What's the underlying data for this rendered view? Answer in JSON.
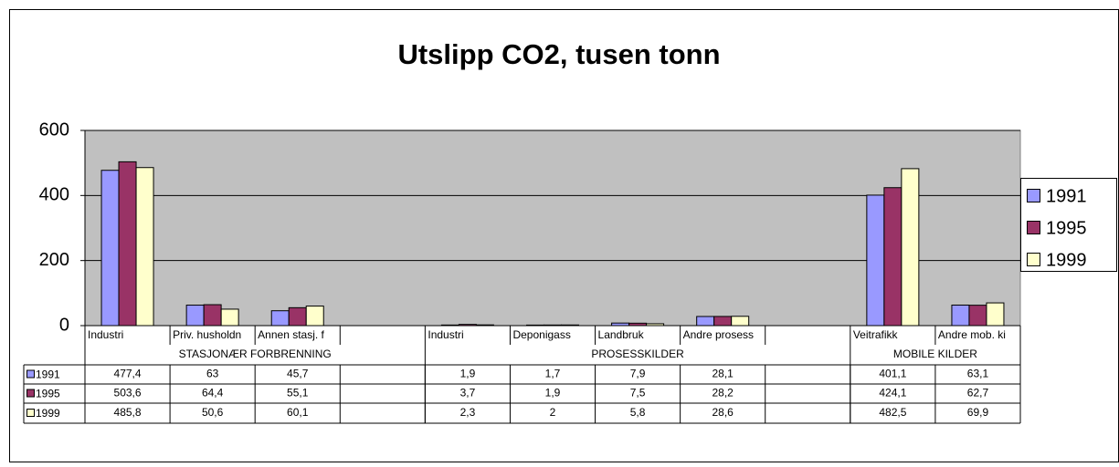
{
  "chart_data": {
    "type": "bar",
    "title": "Utslipp CO2, tusen tonn",
    "categories": [
      "Industri",
      "Priv. husholdn",
      "Annen stasj. f",
      null,
      "Industri",
      "Deponigass",
      "Landbruk",
      "Andre prosess",
      null,
      "Veitrafikk",
      "Andre mob. ki"
    ],
    "groups": [
      {
        "label": "STASJONÆR FORBRENNING",
        "span": [
          0,
          3
        ]
      },
      {
        "label": "PROSESSKILDER",
        "span": [
          4,
          8
        ]
      },
      {
        "label": "MOBILE KILDER",
        "span": [
          9,
          10
        ]
      }
    ],
    "series": [
      {
        "name": "1991",
        "color": "#9999ff",
        "values": [
          477.4,
          63,
          45.7,
          null,
          1.9,
          1.7,
          7.9,
          28.1,
          null,
          401.1,
          63.1
        ],
        "value_labels": [
          "477,4",
          "63",
          "45,7",
          null,
          "1,9",
          "1,7",
          "7,9",
          "28,1",
          null,
          "401,1",
          "63,1"
        ]
      },
      {
        "name": "1995",
        "color": "#993366",
        "values": [
          503.6,
          64.4,
          55.1,
          null,
          3.7,
          1.9,
          7.5,
          28.2,
          null,
          424.1,
          62.7
        ],
        "value_labels": [
          "503,6",
          "64,4",
          "55,1",
          null,
          "3,7",
          "1,9",
          "7,5",
          "28,2",
          null,
          "424,1",
          "62,7"
        ]
      },
      {
        "name": "1999",
        "color": "#ffffcc",
        "values": [
          485.8,
          50.6,
          60.1,
          null,
          2.3,
          2,
          5.8,
          28.6,
          null,
          482.5,
          69.9
        ],
        "value_labels": [
          "485,8",
          "50,6",
          "60,1",
          null,
          "2,3",
          "2",
          "5,8",
          "28,6",
          null,
          "482,5",
          "69,9"
        ]
      }
    ],
    "ylim": [
      0,
      600
    ],
    "yticks": [
      0,
      200,
      400,
      600
    ],
    "grid": true,
    "legend": "right"
  }
}
